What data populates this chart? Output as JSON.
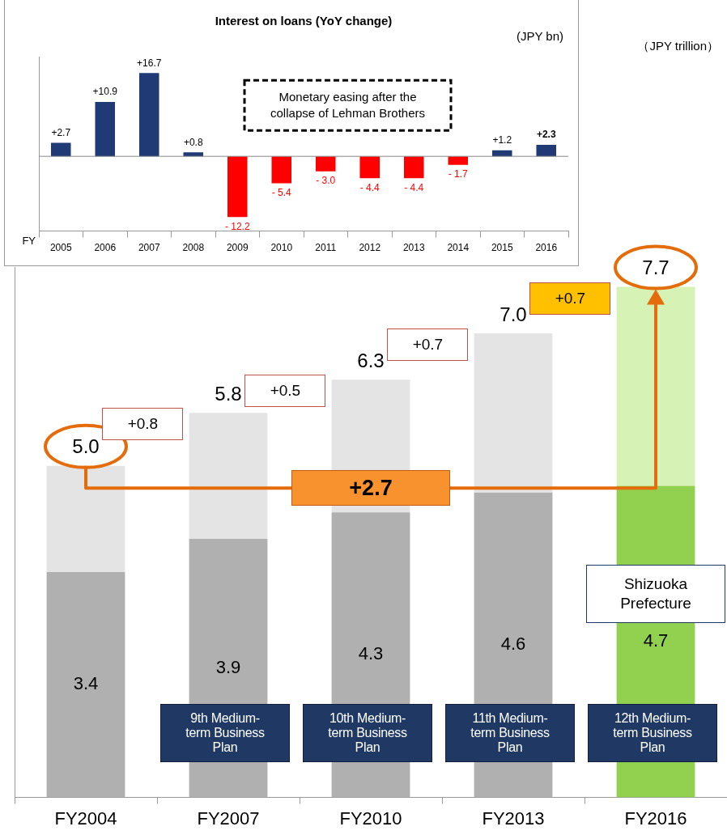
{
  "chart_data": [
    {
      "type": "bar",
      "title": "Interest on loans (YoY change)",
      "categories": [
        "2005",
        "2006",
        "2007",
        "2008",
        "2009",
        "2010",
        "2011",
        "2012",
        "2013",
        "2014",
        "2015",
        "2016"
      ],
      "values": [
        2.7,
        10.9,
        16.7,
        0.8,
        -12.2,
        -5.4,
        -3.0,
        -4.4,
        -4.4,
        -1.7,
        1.2,
        2.3
      ],
      "colors": [
        "#1f3a75",
        "#1f3a75",
        "#1f3a75",
        "#1f3a75",
        "#ff0000",
        "#ff0000",
        "#ff0000",
        "#ff0000",
        "#ff0000",
        "#ff0000",
        "#1f3a75",
        "#1f3a75"
      ],
      "value_labels": [
        "+2.7",
        "+10.9",
        "+16.7",
        "+0.8",
        "- 12.2",
        "- 5.4",
        "- 3.0",
        "- 4.4",
        "- 4.4",
        "- 1.7",
        "+1.2",
        "+2.3"
      ],
      "annotations": [
        "(JPY bn)",
        "Monetary easing after the collapse of Lehman Brothers",
        "FY"
      ]
    },
    {
      "type": "bar",
      "stacked": true,
      "categories": [
        "FY2004",
        "FY2007",
        "FY2010",
        "FY2013",
        "FY2016"
      ],
      "series": [
        {
          "values": [
            3.4,
            3.9,
            4.3,
            4.6,
            4.7
          ],
          "colors": [
            "#b0b0b0",
            "#b0b0b0",
            "#b0b0b0",
            "#b0b0b0",
            "#92d050"
          ],
          "value_labels": [
            "3.4",
            "3.9",
            "4.3",
            "4.6",
            "4.7"
          ]
        },
        {
          "values": [
            1.6,
            1.9,
            2.0,
            2.4,
            3.0
          ],
          "colors": [
            "#e4e4e4",
            "#e4e4e4",
            "#e4e4e4",
            "#e4e4e4",
            "#d6f2b4"
          ]
        }
      ],
      "totals": [
        "5.0",
        "5.8",
        "6.3",
        "7.0",
        "7.7"
      ],
      "annotations": [
        "（JPY trillion）",
        "+0.8",
        "+0.5",
        "+0.7",
        "+0.7",
        "+2.7",
        "Shizuoka Prefecture",
        "9th Medium-term Business Plan",
        "10th Medium-term Business Plan",
        "11th Medium-term Business Plan",
        "12th Medium-term Business Plan"
      ]
    }
  ]
}
